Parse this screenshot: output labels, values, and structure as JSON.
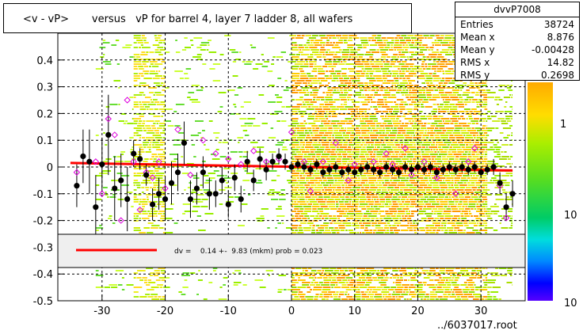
{
  "title": "<v - vP>       versus   vP for barrel 4, layer 7 ladder 8, all wafers",
  "stats": {
    "name": "dvvP7008",
    "rows": [
      {
        "label": "Entries",
        "value": "38724"
      },
      {
        "label": "Mean x",
        "value": "8.876"
      },
      {
        "label": "Mean y",
        "value": "-0.00428"
      },
      {
        "label": "RMS x",
        "value": "14.82"
      },
      {
        "label": "RMS y",
        "value": "0.2698"
      }
    ]
  },
  "footer": "../6037017.root",
  "legend": {
    "text": "dv =    0.14 +-  9.83 (mkm) prob = 0.023"
  },
  "colors": {
    "fit_line": "#ff0000",
    "profile_markers": "#000000",
    "open_markers": "#dd00dd",
    "legend_fill": "#efefef"
  },
  "chart_data": {
    "type": "heatmap",
    "xlim": [
      -37,
      37
    ],
    "ylim": [
      -0.5,
      0.5
    ],
    "x_ticks": [
      -30,
      -20,
      -10,
      0,
      10,
      20,
      30
    ],
    "y_ticks": [
      -0.5,
      -0.4,
      -0.3,
      -0.2,
      -0.1,
      0,
      0.1,
      0.2,
      0.3,
      0.4
    ],
    "colorbar_labels": [
      "1",
      "10",
      "10"
    ],
    "grid": true,
    "fit": {
      "x0": -35,
      "x1": 35,
      "y0": 0.015,
      "y1": -0.013
    },
    "profile_points": [
      {
        "x": -34,
        "y": -0.07,
        "e": 0.08
      },
      {
        "x": -33,
        "y": 0.04,
        "e": 0.1
      },
      {
        "x": -32,
        "y": 0.02,
        "e": 0.12
      },
      {
        "x": -31,
        "y": -0.15,
        "e": 0.12
      },
      {
        "x": -30,
        "y": 0.01,
        "e": 0.1
      },
      {
        "x": -29,
        "y": 0.12,
        "e": 0.15
      },
      {
        "x": -28,
        "y": -0.08,
        "e": 0.12
      },
      {
        "x": -27,
        "y": -0.05,
        "e": 0.1
      },
      {
        "x": -26,
        "y": -0.12,
        "e": 0.12
      },
      {
        "x": -25,
        "y": 0.05,
        "e": 0.05
      },
      {
        "x": -24,
        "y": 0.03,
        "e": 0.04
      },
      {
        "x": -23,
        "y": -0.03,
        "e": 0.04
      },
      {
        "x": -22,
        "y": -0.14,
        "e": 0.06
      },
      {
        "x": -21,
        "y": -0.1,
        "e": 0.06
      },
      {
        "x": -20,
        "y": -0.12,
        "e": 0.08
      },
      {
        "x": -19,
        "y": -0.06,
        "e": 0.08
      },
      {
        "x": -18,
        "y": -0.02,
        "e": 0.07
      },
      {
        "x": -17,
        "y": 0.09,
        "e": 0.08
      },
      {
        "x": -16,
        "y": -0.12,
        "e": 0.07
      },
      {
        "x": -15,
        "y": -0.08,
        "e": 0.06
      },
      {
        "x": -14,
        "y": -0.02,
        "e": 0.06
      },
      {
        "x": -13,
        "y": -0.1,
        "e": 0.06
      },
      {
        "x": -12,
        "y": -0.1,
        "e": 0.05
      },
      {
        "x": -11,
        "y": -0.05,
        "e": 0.05
      },
      {
        "x": -10,
        "y": -0.14,
        "e": 0.05
      },
      {
        "x": -9,
        "y": -0.04,
        "e": 0.05
      },
      {
        "x": -8,
        "y": -0.12,
        "e": 0.05
      },
      {
        "x": -7,
        "y": 0.02,
        "e": 0.04
      },
      {
        "x": -6,
        "y": -0.05,
        "e": 0.04
      },
      {
        "x": -5,
        "y": 0.03,
        "e": 0.04
      },
      {
        "x": -4,
        "y": -0.01,
        "e": 0.04
      },
      {
        "x": -3,
        "y": 0.02,
        "e": 0.03
      },
      {
        "x": -2,
        "y": 0.04,
        "e": 0.03
      },
      {
        "x": -1,
        "y": 0.02,
        "e": 0.03
      },
      {
        "x": 0,
        "y": 0.0,
        "e": 0.02
      },
      {
        "x": 1,
        "y": 0.01,
        "e": 0.02
      },
      {
        "x": 2,
        "y": 0.0,
        "e": 0.02
      },
      {
        "x": 3,
        "y": -0.01,
        "e": 0.02
      },
      {
        "x": 4,
        "y": 0.01,
        "e": 0.02
      },
      {
        "x": 5,
        "y": -0.02,
        "e": 0.02
      },
      {
        "x": 6,
        "y": -0.01,
        "e": 0.02
      },
      {
        "x": 7,
        "y": 0.0,
        "e": 0.02
      },
      {
        "x": 8,
        "y": -0.02,
        "e": 0.02
      },
      {
        "x": 9,
        "y": -0.01,
        "e": 0.02
      },
      {
        "x": 10,
        "y": -0.02,
        "e": 0.02
      },
      {
        "x": 11,
        "y": -0.01,
        "e": 0.02
      },
      {
        "x": 12,
        "y": 0.0,
        "e": 0.02
      },
      {
        "x": 13,
        "y": -0.01,
        "e": 0.02
      },
      {
        "x": 14,
        "y": -0.02,
        "e": 0.02
      },
      {
        "x": 15,
        "y": 0.0,
        "e": 0.02
      },
      {
        "x": 16,
        "y": -0.01,
        "e": 0.02
      },
      {
        "x": 17,
        "y": -0.02,
        "e": 0.02
      },
      {
        "x": 18,
        "y": 0.0,
        "e": 0.02
      },
      {
        "x": 19,
        "y": -0.01,
        "e": 0.02
      },
      {
        "x": 20,
        "y": 0.0,
        "e": 0.02
      },
      {
        "x": 21,
        "y": -0.01,
        "e": 0.02
      },
      {
        "x": 22,
        "y": 0.0,
        "e": 0.02
      },
      {
        "x": 23,
        "y": -0.02,
        "e": 0.02
      },
      {
        "x": 24,
        "y": -0.01,
        "e": 0.02
      },
      {
        "x": 25,
        "y": 0.0,
        "e": 0.02
      },
      {
        "x": 26,
        "y": -0.01,
        "e": 0.02
      },
      {
        "x": 27,
        "y": 0.0,
        "e": 0.02
      },
      {
        "x": 28,
        "y": -0.01,
        "e": 0.02
      },
      {
        "x": 29,
        "y": 0.0,
        "e": 0.02
      },
      {
        "x": 30,
        "y": -0.02,
        "e": 0.02
      },
      {
        "x": 31,
        "y": -0.01,
        "e": 0.02
      },
      {
        "x": 32,
        "y": 0.0,
        "e": 0.03
      },
      {
        "x": 33,
        "y": -0.06,
        "e": 0.04
      },
      {
        "x": 34,
        "y": -0.15,
        "e": 0.05
      },
      {
        "x": 35,
        "y": -0.1,
        "e": 0.05
      }
    ],
    "open_points": [
      {
        "x": -34,
        "y": -0.02
      },
      {
        "x": -31,
        "y": 0.02
      },
      {
        "x": -30,
        "y": -0.1
      },
      {
        "x": -29,
        "y": 0.18
      },
      {
        "x": -28,
        "y": 0.12
      },
      {
        "x": -27,
        "y": -0.2
      },
      {
        "x": -26,
        "y": 0.25
      },
      {
        "x": -25,
        "y": 0.02
      },
      {
        "x": -24,
        "y": -0.16
      },
      {
        "x": -23,
        "y": -0.02
      },
      {
        "x": -22,
        "y": -0.04
      },
      {
        "x": -21,
        "y": 0.02
      },
      {
        "x": -20,
        "y": -0.08
      },
      {
        "x": -18,
        "y": 0.14
      },
      {
        "x": -16,
        "y": -0.03
      },
      {
        "x": -14,
        "y": 0.1
      },
      {
        "x": -12,
        "y": 0.05
      },
      {
        "x": -10,
        "y": 0.03
      },
      {
        "x": -8,
        "y": 0.01
      },
      {
        "x": -6,
        "y": 0.06
      },
      {
        "x": -4,
        "y": 0.02
      },
      {
        "x": -2,
        "y": 0.03
      },
      {
        "x": 0,
        "y": 0.13
      },
      {
        "x": 2,
        "y": 0.02
      },
      {
        "x": 3,
        "y": -0.09
      },
      {
        "x": 5,
        "y": 0.02
      },
      {
        "x": 7,
        "y": 0.09
      },
      {
        "x": 9,
        "y": -0.05
      },
      {
        "x": 10,
        "y": 0.01
      },
      {
        "x": 13,
        "y": 0.02
      },
      {
        "x": 15,
        "y": 0.05
      },
      {
        "x": 16,
        "y": 0.01
      },
      {
        "x": 18,
        "y": 0.07
      },
      {
        "x": 19,
        "y": -0.03
      },
      {
        "x": 21,
        "y": 0.02
      },
      {
        "x": 23,
        "y": -0.04
      },
      {
        "x": 26,
        "y": -0.1
      },
      {
        "x": 28,
        "y": 0.02
      },
      {
        "x": 29,
        "y": 0.07
      },
      {
        "x": 31,
        "y": -0.01
      },
      {
        "x": 33,
        "y": -0.07
      },
      {
        "x": 34,
        "y": -0.19
      }
    ]
  }
}
